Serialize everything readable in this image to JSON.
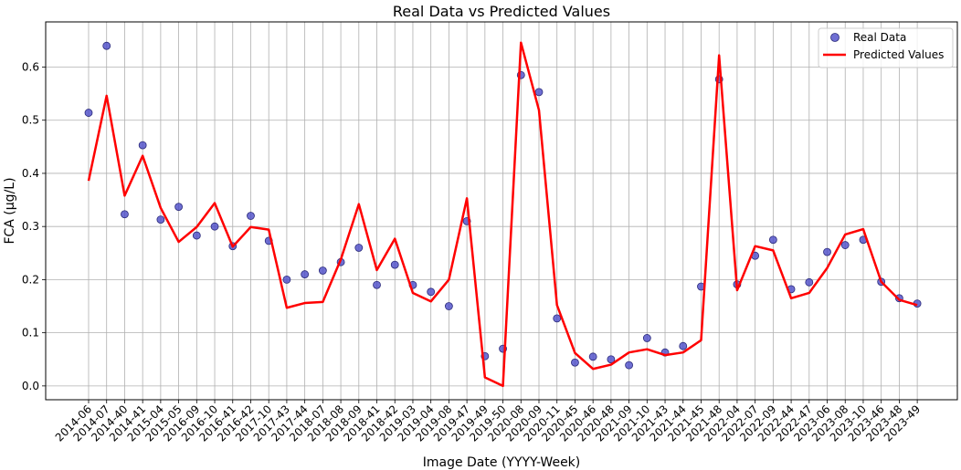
{
  "chart_data": {
    "type": "line",
    "title": "Real Data vs Predicted Values",
    "xlabel": "Image Date (YYYY-Week)",
    "ylabel": "FCA (μg/L)",
    "ylim": [
      -0.026,
      0.685
    ],
    "yticks": [
      0.0,
      0.1,
      0.2,
      0.3,
      0.4,
      0.5,
      0.6
    ],
    "ytick_labels": [
      "0.0",
      "0.1",
      "0.2",
      "0.3",
      "0.4",
      "0.5",
      "0.6"
    ],
    "grid": true,
    "legend_position": "top-right",
    "categories": [
      "2014-06",
      "2014-07",
      "2014-40",
      "2014-41",
      "2015-04",
      "2015-05",
      "2016-09",
      "2016-10",
      "2016-41",
      "2016-42",
      "2017-10",
      "2017-43",
      "2017-44",
      "2018-07",
      "2018-08",
      "2018-09",
      "2018-41",
      "2018-42",
      "2019-03",
      "2019-04",
      "2019-08",
      "2019-47",
      "2019-49",
      "2019-50",
      "2020-08",
      "2020-09",
      "2020-11",
      "2020-45",
      "2020-46",
      "2020-48",
      "2021-09",
      "2021-10",
      "2021-43",
      "2021-44",
      "2021-45",
      "2021-48",
      "2022-04",
      "2022-07",
      "2022-09",
      "2022-44",
      "2022-47",
      "2023-06",
      "2023-08",
      "2023-10",
      "2023-46",
      "2023-48",
      "2023-49"
    ],
    "series": [
      {
        "name": "Real Data",
        "style": "scatter",
        "color": "#4b4bc8",
        "values": [
          0.514,
          0.64,
          0.323,
          0.453,
          0.313,
          0.337,
          0.283,
          0.3,
          0.263,
          0.32,
          0.273,
          0.2,
          0.21,
          0.217,
          0.233,
          0.26,
          0.19,
          0.228,
          0.19,
          0.177,
          0.15,
          0.31,
          0.056,
          0.07,
          0.585,
          0.553,
          0.127,
          0.044,
          0.055,
          0.05,
          0.039,
          0.09,
          0.063,
          0.075,
          0.187,
          0.577,
          0.191,
          0.245,
          0.275,
          0.182,
          0.195,
          0.252,
          0.265,
          0.275,
          0.196,
          0.165,
          0.155
        ]
      },
      {
        "name": "Predicted Values",
        "style": "line",
        "color": "#ff0000",
        "values": [
          0.386,
          0.546,
          0.358,
          0.433,
          0.335,
          0.271,
          0.299,
          0.344,
          0.262,
          0.299,
          0.294,
          0.147,
          0.156,
          0.158,
          0.238,
          0.342,
          0.218,
          0.277,
          0.175,
          0.159,
          0.2,
          0.353,
          0.016,
          0.0,
          0.646,
          0.519,
          0.152,
          0.062,
          0.032,
          0.04,
          0.063,
          0.069,
          0.058,
          0.063,
          0.086,
          0.622,
          0.18,
          0.263,
          0.255,
          0.165,
          0.175,
          0.222,
          0.285,
          0.295,
          0.196,
          0.162,
          0.152
        ]
      }
    ]
  }
}
